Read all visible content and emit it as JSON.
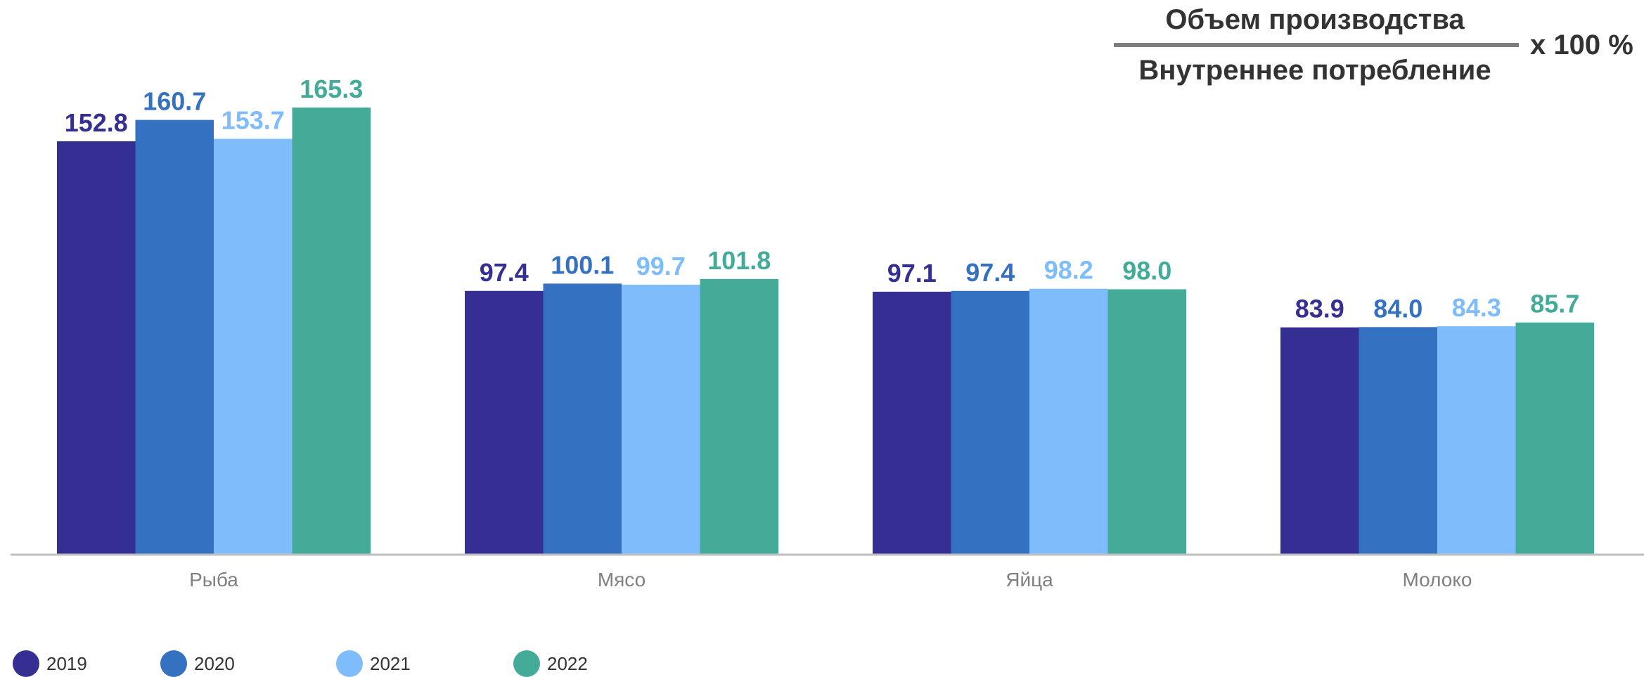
{
  "formula": {
    "numerator": "Объем производства",
    "denominator": "Внутреннее потребление",
    "multiplier": "х 100 %"
  },
  "chart_data": {
    "type": "bar",
    "title": "",
    "xlabel": "",
    "ylabel": "",
    "ylim": [
      0,
      180
    ],
    "grid": false,
    "legend_position": "bottom-left",
    "categories": [
      "Рыба",
      "Мясо",
      "Яйца",
      "Молоко"
    ],
    "series": [
      {
        "name": "2019",
        "color": "#352f94",
        "values": [
          152.8,
          97.4,
          97.1,
          83.9
        ],
        "labels": [
          "152.8",
          "97.4",
          "97.1",
          "83.9"
        ]
      },
      {
        "name": "2020",
        "color": "#3571c1",
        "values": [
          160.7,
          100.1,
          97.4,
          84.0
        ],
        "labels": [
          "160.7",
          "100.1",
          "97.4",
          "84.0"
        ]
      },
      {
        "name": "2021",
        "color": "#7ebcfb",
        "values": [
          153.7,
          99.7,
          98.2,
          84.3
        ],
        "labels": [
          "153.7",
          "99.7",
          "98.2",
          "84.3"
        ]
      },
      {
        "name": "2022",
        "color": "#44ab98",
        "values": [
          165.3,
          101.8,
          98.0,
          85.7
        ],
        "labels": [
          "165.3",
          "101.8",
          "98.0",
          "85.7"
        ]
      }
    ]
  }
}
